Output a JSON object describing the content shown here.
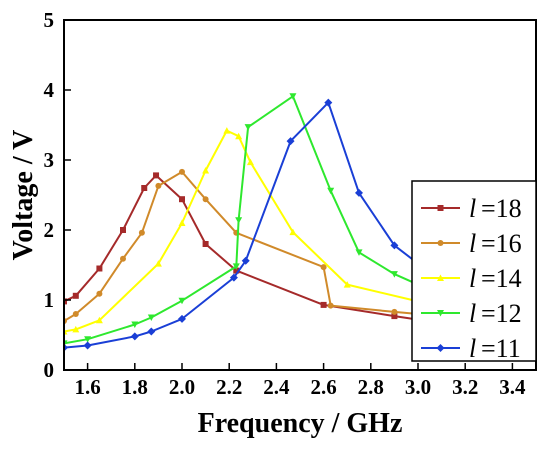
{
  "chart_data": {
    "type": "line",
    "xlabel": "Frequency / GHz",
    "ylabel": "Voltage / V",
    "xlim": [
      1.5,
      3.5
    ],
    "ylim": [
      0,
      5
    ],
    "xticks": [
      "1.6",
      "1.8",
      "2.0",
      "2.2",
      "2.4",
      "2.6",
      "2.8",
      "3.0",
      "3.2",
      "3.4"
    ],
    "yticks": [
      "0",
      "1",
      "2",
      "3",
      "4",
      "5"
    ],
    "grid": false,
    "legend_position": "right",
    "series": [
      {
        "name": "l =18",
        "legend_symbol": "l",
        "legend_value": "=18",
        "color": "#a52a2a",
        "marker": "square",
        "x": [
          1.5,
          1.55,
          1.65,
          1.75,
          1.84,
          1.89,
          2.0,
          2.1,
          2.23,
          2.6,
          2.9,
          3.0
        ],
        "y": [
          0.98,
          1.06,
          1.45,
          2.0,
          2.6,
          2.78,
          2.44,
          1.8,
          1.42,
          0.93,
          0.77,
          0.72
        ]
      },
      {
        "name": "l =16",
        "legend_symbol": "l",
        "legend_value": "=16",
        "color": "#d08a2a",
        "marker": "circle",
        "x": [
          1.5,
          1.55,
          1.65,
          1.75,
          1.83,
          1.9,
          2.0,
          2.1,
          2.23,
          2.6,
          2.63,
          2.9,
          3.0
        ],
        "y": [
          0.7,
          0.8,
          1.09,
          1.59,
          1.96,
          2.63,
          2.83,
          2.44,
          1.96,
          1.47,
          0.92,
          0.83,
          0.8
        ]
      },
      {
        "name": "l =14",
        "legend_symbol": "l",
        "legend_value": "=14",
        "color": "#ffff00",
        "marker": "triangle-up",
        "x": [
          1.5,
          1.55,
          1.65,
          1.9,
          2.0,
          2.1,
          2.19,
          2.24,
          2.29,
          2.47,
          2.7,
          3.0
        ],
        "y": [
          0.55,
          0.58,
          0.71,
          1.52,
          2.1,
          2.85,
          3.42,
          3.34,
          2.97,
          1.97,
          1.22,
          0.98
        ]
      },
      {
        "name": "l =12",
        "legend_symbol": "l",
        "legend_value": "=12",
        "color": "#2ee82e",
        "marker": "triangle-down",
        "x": [
          1.5,
          1.6,
          1.8,
          1.87,
          2.0,
          2.23,
          2.24,
          2.28,
          2.47,
          2.63,
          2.75,
          2.9,
          3.0
        ],
        "y": [
          0.38,
          0.44,
          0.65,
          0.75,
          0.99,
          1.48,
          2.14,
          3.47,
          3.91,
          2.56,
          1.68,
          1.37,
          1.22
        ]
      },
      {
        "name": "l =11",
        "legend_symbol": "l",
        "legend_value": "=11",
        "color": "#1a3fd6",
        "marker": "diamond",
        "x": [
          1.5,
          1.6,
          1.8,
          1.87,
          2.0,
          2.22,
          2.27,
          2.46,
          2.62,
          2.75,
          2.9,
          3.0
        ],
        "y": [
          0.32,
          0.35,
          0.48,
          0.55,
          0.73,
          1.32,
          1.56,
          3.27,
          3.82,
          2.53,
          1.78,
          1.52
        ]
      }
    ]
  }
}
